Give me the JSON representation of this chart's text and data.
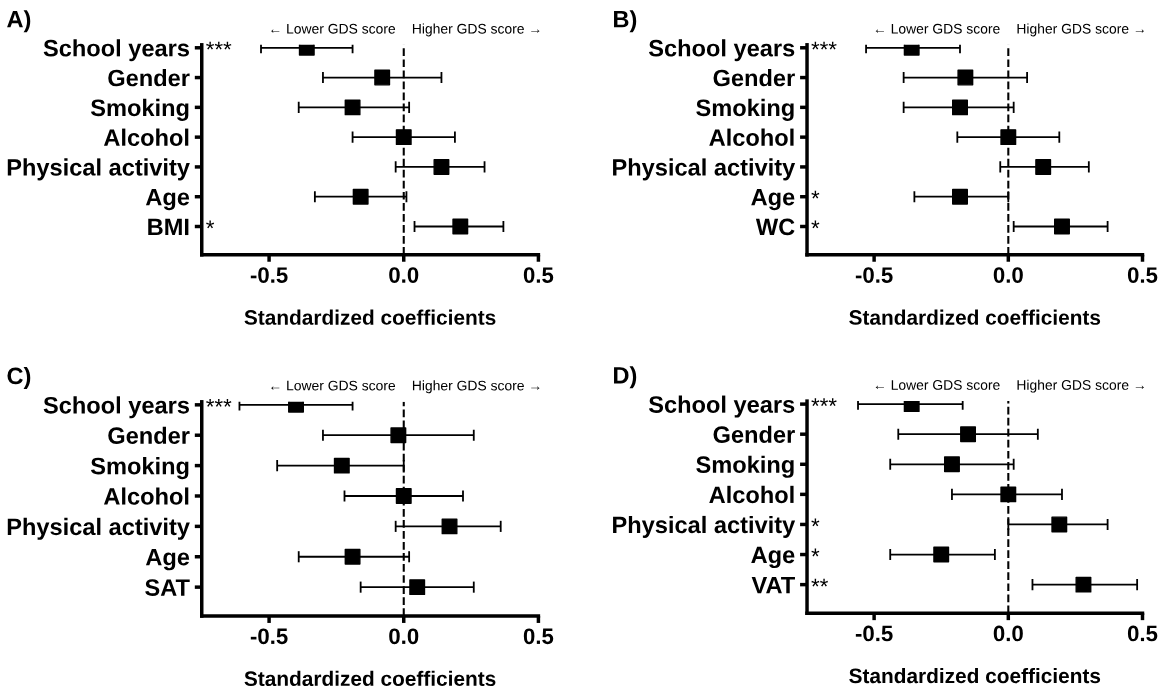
{
  "chart_data": [
    {
      "type": "scatter",
      "orientation": "horizontal",
      "title": "A)",
      "xlabel": "Standardized coefficients",
      "categories": [
        "School years",
        "Gender",
        "Smoking",
        "Alcohol",
        "Physical activity",
        "Age",
        "BMI"
      ],
      "values": [
        -0.36,
        -0.08,
        -0.19,
        0.0,
        0.14,
        -0.16,
        0.21
      ],
      "errors": [
        [
          -0.53,
          -0.19
        ],
        [
          -0.3,
          0.14
        ],
        [
          -0.39,
          0.02
        ],
        [
          -0.19,
          0.19
        ],
        [
          -0.03,
          0.3
        ],
        [
          -0.33,
          0.01
        ],
        [
          0.04,
          0.37
        ]
      ],
      "color": "#000000",
      "marker": "square",
      "xlim": [
        -0.75,
        0.5
      ],
      "xticks": [
        {
          "value": -0.5,
          "label": "-0.5"
        },
        {
          "value": 0,
          "label": "0.0"
        },
        {
          "value": 0.5,
          "label": "0.5"
        }
      ],
      "grid": false,
      "ref_lines": [
        {
          "axis": "x",
          "value": 0,
          "line_style": "dashed",
          "color": "#000000"
        }
      ],
      "annotations": [
        "← Lower GDS score",
        "Higher GDS score →",
        "***",
        "*"
      ]
    },
    {
      "type": "scatter",
      "orientation": "horizontal",
      "title": "B)",
      "xlabel": "Standardized coefficients",
      "categories": [
        "School years",
        "Gender",
        "Smoking",
        "Alcohol",
        "Physical activity",
        "Age",
        "WC"
      ],
      "values": [
        -0.36,
        -0.16,
        -0.18,
        0.0,
        0.13,
        -0.18,
        0.2
      ],
      "errors": [
        [
          -0.53,
          -0.18
        ],
        [
          -0.39,
          0.07
        ],
        [
          -0.39,
          0.02
        ],
        [
          -0.19,
          0.19
        ],
        [
          -0.03,
          0.3
        ],
        [
          -0.35,
          0.0
        ],
        [
          0.02,
          0.37
        ]
      ],
      "color": "#000000",
      "marker": "square",
      "xlim": [
        -0.75,
        0.5
      ],
      "xticks": [
        {
          "value": -0.5,
          "label": "-0.5"
        },
        {
          "value": 0,
          "label": "0.0"
        },
        {
          "value": 0.5,
          "label": "0.5"
        }
      ],
      "grid": false,
      "ref_lines": [
        {
          "axis": "x",
          "value": 0,
          "line_style": "dashed",
          "color": "#000000"
        }
      ],
      "annotations": [
        "← Lower GDS score",
        "Higher GDS score →",
        "***",
        "*",
        "*"
      ]
    },
    {
      "type": "scatter",
      "orientation": "horizontal",
      "title": "C)",
      "xlabel": "Standardized coefficients",
      "categories": [
        "School years",
        "Gender",
        "Smoking",
        "Alcohol",
        "Physical activity",
        "Age",
        "SAT"
      ],
      "values": [
        -0.4,
        -0.02,
        -0.23,
        0.0,
        0.17,
        -0.19,
        0.05
      ],
      "errors": [
        [
          -0.61,
          -0.19
        ],
        [
          -0.3,
          0.26
        ],
        [
          -0.47,
          0.0
        ],
        [
          -0.22,
          0.22
        ],
        [
          -0.03,
          0.36
        ],
        [
          -0.39,
          0.02
        ],
        [
          -0.16,
          0.26
        ]
      ],
      "color": "#000000",
      "marker": "square",
      "xlim": [
        -0.75,
        0.5
      ],
      "xticks": [
        {
          "value": -0.5,
          "label": "-0.5"
        },
        {
          "value": 0,
          "label": "0.0"
        },
        {
          "value": 0.5,
          "label": "0.5"
        }
      ],
      "grid": false,
      "ref_lines": [
        {
          "axis": "x",
          "value": 0,
          "line_style": "dashed",
          "color": "#000000"
        }
      ],
      "annotations": [
        "← Lower GDS score",
        "Higher GDS score →",
        "***"
      ]
    },
    {
      "type": "scatter",
      "orientation": "horizontal",
      "title": "D)",
      "xlabel": "Standardized coefficients",
      "categories": [
        "School years",
        "Gender",
        "Smoking",
        "Alcohol",
        "Physical activity",
        "Age",
        "VAT"
      ],
      "values": [
        -0.36,
        -0.15,
        -0.21,
        0.0,
        0.19,
        -0.25,
        0.28
      ],
      "errors": [
        [
          -0.56,
          -0.17
        ],
        [
          -0.41,
          0.11
        ],
        [
          -0.44,
          0.02
        ],
        [
          -0.21,
          0.2
        ],
        [
          0.0,
          0.37
        ],
        [
          -0.44,
          -0.05
        ],
        [
          0.09,
          0.48
        ]
      ],
      "color": "#000000",
      "marker": "square",
      "xlim": [
        -0.75,
        0.5
      ],
      "xticks": [
        {
          "value": -0.5,
          "label": "-0.5"
        },
        {
          "value": 0,
          "label": "0.0"
        },
        {
          "value": 0.5,
          "label": "0.5"
        }
      ],
      "grid": false,
      "ref_lines": [
        {
          "axis": "x",
          "value": 0,
          "line_style": "dashed",
          "color": "#000000"
        }
      ],
      "annotations": [
        "← Lower GDS score",
        "Higher GDS score →",
        "***",
        "*",
        "*",
        "**"
      ]
    }
  ]
}
